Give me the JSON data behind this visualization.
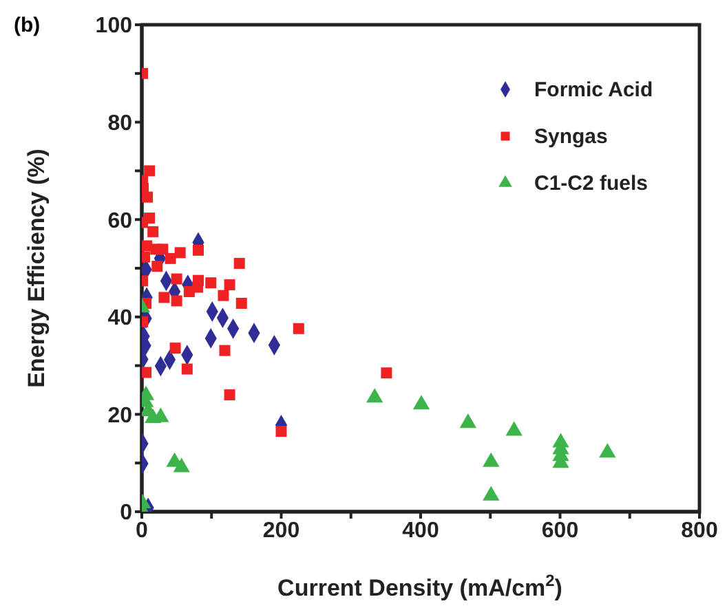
{
  "chart_data": {
    "type": "scatter",
    "xlabel": "Current Density (mA/cm$^{2}$)",
    "ylabel": "Energy Efficiency  (%)",
    "annotations": [
      "(b)"
    ],
    "xlim": [
      0,
      800
    ],
    "xticks": [
      0,
      {
        "value": 100,
        "label": null
      },
      200,
      {
        "value": 300,
        "label": null
      },
      400,
      {
        "value": 500,
        "label": null
      },
      600,
      {
        "value": 700,
        "label": null
      },
      800
    ],
    "ylim": [
      0,
      100
    ],
    "yticks": [
      0,
      {
        "value": 10,
        "label": null
      },
      20,
      {
        "value": 30,
        "label": null
      },
      40,
      {
        "value": 50,
        "label": null
      },
      60,
      {
        "value": 70,
        "label": null
      },
      80,
      {
        "value": 90,
        "label": null
      },
      100
    ],
    "grid": false,
    "legend": "top right",
    "series": [
      {
        "name": "Formic Acid",
        "color": "#2e2e96",
        "marker": "diamond",
        "x": [
          81,
          6,
          26,
          30,
          35,
          47,
          66,
          7,
          6,
          101,
          116,
          131,
          161,
          190,
          99,
          3,
          5,
          1,
          27,
          40,
          65,
          200,
          1,
          1,
          9
        ],
        "values": [
          55.3,
          49.7,
          52,
          null,
          47.4,
          45.2,
          46.6,
          44,
          39.7,
          41.1,
          39.8,
          37.6,
          36.7,
          34.2,
          35.6,
          36,
          34.1,
          31.3,
          29.9,
          31.2,
          32.2,
          17.8,
          14,
          9.9,
          0.8
        ]
      },
      {
        "name": "Syngas",
        "color": "#ee2222",
        "marker": "square",
        "x": [
          1,
          1,
          2,
          8,
          11,
          1,
          11,
          16,
          7,
          14,
          20,
          30,
          41,
          55,
          81,
          4,
          22,
          1,
          50,
          50,
          32,
          68,
          80,
          81,
          99,
          117,
          126,
          140,
          143,
          6,
          1,
          225,
          48,
          119,
          65,
          6,
          351,
          126,
          200
        ],
        "values": [
          90,
          68,
          66.4,
          64.6,
          70,
          59.4,
          60.3,
          57.5,
          54.6,
          null,
          53.9,
          53.9,
          52,
          53.2,
          53.7,
          52.3,
          50.4,
          47.4,
          47.8,
          43.3,
          44,
          45.2,
          46.1,
          47.5,
          47,
          44.4,
          46.6,
          51,
          42.8,
          42.8,
          39,
          37.6,
          33.6,
          33.1,
          29.3,
          28.6,
          28.5,
          24,
          16.5
        ]
      },
      {
        "name": "C1-C2 fuels",
        "color": "#3cb44a",
        "marker": "triangle",
        "x": [
          0,
          6,
          5,
          9,
          16,
          27,
          47,
          57,
          1,
          0,
          334,
          401,
          468,
          534,
          501,
          501,
          601,
          601,
          601,
          601,
          668
        ],
        "values": [
          41.9,
          23.9,
          22.5,
          20.6,
          19.2,
          19.4,
          10.2,
          9.1,
          1.7,
          0.3,
          23.4,
          22,
          18.2,
          16.6,
          10.2,
          3.3,
          14.2,
          12.8,
          11.4,
          10,
          12.1
        ]
      }
    ]
  }
}
